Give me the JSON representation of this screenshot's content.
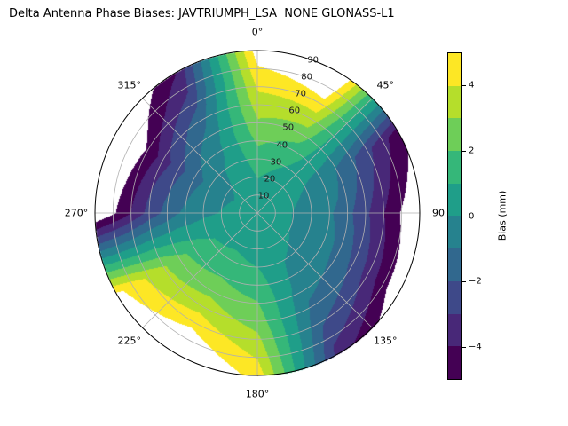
{
  "title": "Delta Antenna Phase Biases: JAVTRIUMPH_LSA  NONE GLONASS-L1",
  "chart_data": {
    "type": "heatmap",
    "projection": "polar",
    "title": "Delta Antenna Phase Biases: JAVTRIUMPH_LSA  NONE GLONASS-L1",
    "angular_tick_labels": [
      "0°",
      "45°",
      "90",
      "135°",
      "180°",
      "225°",
      "270°",
      "315°"
    ],
    "angular_tick_degrees": [
      0,
      45,
      90,
      135,
      180,
      225,
      270,
      315
    ],
    "radial_tick_labels": [
      "10",
      "20",
      "30",
      "40",
      "50",
      "60",
      "70",
      "80",
      "90"
    ],
    "radial_tick_values": [
      10,
      20,
      30,
      40,
      50,
      60,
      70,
      80,
      90
    ],
    "radial_max": 90,
    "grid_color": "#b0b0b0",
    "colorbar": {
      "label": "Bias (mm)",
      "min": -5,
      "max": 5,
      "tick_values": [
        4,
        2,
        0,
        -2,
        -4
      ],
      "tick_labels": [
        "4",
        "2",
        "0",
        "−2",
        "−4"
      ],
      "level_colors": [
        "#440154",
        "#482878",
        "#3e4989",
        "#31688e",
        "#26828e",
        "#1f9e89",
        "#35b779",
        "#6ece58",
        "#b5de2b",
        "#fde725"
      ],
      "out_of_range_color": "#ffffff"
    },
    "grid": {
      "azimuth_deg": [
        0,
        30,
        60,
        90,
        120,
        150,
        180,
        210,
        240,
        270,
        300,
        330
      ],
      "zenith_deg": [
        0,
        15,
        30,
        45,
        60,
        75,
        90
      ],
      "bias_mm": [
        [
          0.3,
          0.8,
          1.5,
          2.5,
          3.5,
          4.5,
          5.6
        ],
        [
          0.3,
          0.5,
          1.0,
          2.0,
          3.5,
          5.2,
          6.8
        ],
        [
          0.3,
          0.2,
          0.0,
          -0.6,
          -1.8,
          -3.2,
          -4.6
        ],
        [
          0.3,
          0.1,
          -0.3,
          -1.2,
          -2.8,
          -4.6,
          -6.2
        ],
        [
          0.3,
          0.1,
          -0.2,
          -0.9,
          -2.2,
          -4.0,
          -6.0
        ],
        [
          0.3,
          0.2,
          0.0,
          -0.4,
          -1.2,
          -2.2,
          -3.5
        ],
        [
          0.3,
          0.5,
          1.0,
          1.8,
          2.6,
          3.6,
          4.6
        ],
        [
          0.3,
          0.6,
          1.3,
          2.3,
          3.6,
          5.2,
          6.8
        ],
        [
          0.3,
          0.5,
          1.1,
          2.0,
          3.1,
          4.2,
          5.3
        ],
        [
          0.3,
          0.2,
          -0.2,
          -1.1,
          -2.6,
          -4.6,
          -6.2
        ],
        [
          0.3,
          0.0,
          -0.6,
          -1.8,
          -3.5,
          -5.5,
          -7.0
        ],
        [
          0.3,
          0.2,
          0.2,
          -0.2,
          -1.2,
          -2.8,
          -4.0
        ]
      ]
    }
  }
}
